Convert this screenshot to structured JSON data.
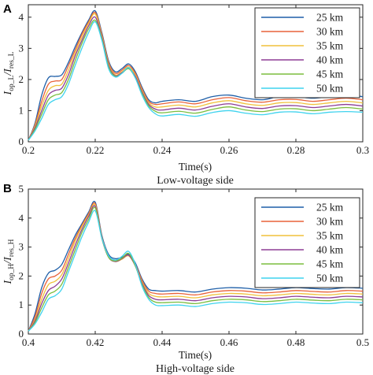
{
  "colors": {
    "25 km": "#1f5fa8",
    "30 km": "#e8623a",
    "35 km": "#f0c13c",
    "40 km": "#8e3d96",
    "45 km": "#7bbd3f",
    "50 km": "#3fd3ee"
  },
  "chart_data": [
    {
      "type": "line",
      "panel": "A",
      "caption": "Low-voltage side",
      "xlabel": "Time(s)",
      "ylabel": {
        "main": "I",
        "sub1": "op_L",
        "mid": "/I",
        "sub2": "res_L"
      },
      "xlim": [
        0.2,
        0.3
      ],
      "ylim": [
        0,
        4.4
      ],
      "xticks": [
        0.2,
        0.22,
        0.24,
        0.26,
        0.28,
        0.3
      ],
      "xtick_labels": [
        "0.2",
        "0.22",
        "0.24",
        "0.26",
        "0.28",
        "0.3"
      ],
      "yticks": [
        0,
        1,
        2,
        3,
        4
      ],
      "ytick_labels": [
        "0",
        "1",
        "2",
        "3",
        "4"
      ],
      "legend_position": "top-right",
      "grid": false,
      "series": [
        {
          "name": "25 km",
          "x": [
            0.2,
            0.202,
            0.204,
            0.206,
            0.208,
            0.21,
            0.212,
            0.214,
            0.216,
            0.218,
            0.22,
            0.222,
            0.224,
            0.226,
            0.228,
            0.23,
            0.232,
            0.234,
            0.236,
            0.238,
            0.24,
            0.245,
            0.25,
            0.255,
            0.26,
            0.265,
            0.27,
            0.275,
            0.28,
            0.285,
            0.29,
            0.295,
            0.3
          ],
          "y": [
            0.05,
            0.6,
            1.5,
            2.05,
            2.1,
            2.15,
            2.55,
            3.05,
            3.5,
            3.9,
            4.2,
            3.5,
            2.6,
            2.25,
            2.35,
            2.5,
            2.25,
            1.75,
            1.35,
            1.25,
            1.3,
            1.35,
            1.3,
            1.45,
            1.5,
            1.4,
            1.35,
            1.45,
            1.45,
            1.4,
            1.45,
            1.5,
            1.45
          ]
        },
        {
          "name": "30 km",
          "x": [
            0.2,
            0.202,
            0.204,
            0.206,
            0.208,
            0.21,
            0.212,
            0.214,
            0.216,
            0.218,
            0.22,
            0.222,
            0.224,
            0.226,
            0.228,
            0.23,
            0.232,
            0.234,
            0.236,
            0.238,
            0.24,
            0.245,
            0.25,
            0.255,
            0.26,
            0.265,
            0.27,
            0.275,
            0.28,
            0.285,
            0.29,
            0.295,
            0.3
          ],
          "y": [
            0.05,
            0.55,
            1.3,
            1.85,
            1.95,
            2.0,
            2.45,
            2.95,
            3.45,
            3.85,
            4.15,
            3.45,
            2.55,
            2.2,
            2.3,
            2.45,
            2.2,
            1.7,
            1.3,
            1.2,
            1.22,
            1.28,
            1.22,
            1.35,
            1.42,
            1.32,
            1.27,
            1.35,
            1.36,
            1.3,
            1.35,
            1.4,
            1.35
          ]
        },
        {
          "name": "35 km",
          "x": [
            0.2,
            0.202,
            0.204,
            0.206,
            0.208,
            0.21,
            0.212,
            0.214,
            0.216,
            0.218,
            0.22,
            0.222,
            0.224,
            0.226,
            0.228,
            0.23,
            0.232,
            0.234,
            0.236,
            0.238,
            0.24,
            0.245,
            0.25,
            0.255,
            0.26,
            0.265,
            0.27,
            0.275,
            0.28,
            0.285,
            0.29,
            0.295,
            0.3
          ],
          "y": [
            0.05,
            0.5,
            1.15,
            1.65,
            1.8,
            1.85,
            2.3,
            2.85,
            3.35,
            3.8,
            4.1,
            3.4,
            2.5,
            2.15,
            2.25,
            2.4,
            2.15,
            1.65,
            1.25,
            1.12,
            1.12,
            1.18,
            1.12,
            1.25,
            1.32,
            1.22,
            1.17,
            1.25,
            1.26,
            1.2,
            1.25,
            1.3,
            1.25
          ]
        },
        {
          "name": "40 km",
          "x": [
            0.2,
            0.202,
            0.204,
            0.206,
            0.208,
            0.21,
            0.212,
            0.214,
            0.216,
            0.218,
            0.22,
            0.222,
            0.224,
            0.226,
            0.228,
            0.23,
            0.232,
            0.234,
            0.236,
            0.238,
            0.24,
            0.245,
            0.25,
            0.255,
            0.26,
            0.265,
            0.27,
            0.275,
            0.28,
            0.285,
            0.29,
            0.295,
            0.3
          ],
          "y": [
            0.05,
            0.45,
            1.0,
            1.5,
            1.65,
            1.72,
            2.15,
            2.75,
            3.25,
            3.72,
            4.0,
            3.35,
            2.45,
            2.12,
            2.22,
            2.35,
            2.1,
            1.6,
            1.2,
            1.05,
            1.02,
            1.08,
            1.02,
            1.14,
            1.22,
            1.12,
            1.07,
            1.15,
            1.16,
            1.1,
            1.15,
            1.2,
            1.15
          ]
        },
        {
          "name": "45 km",
          "x": [
            0.2,
            0.202,
            0.204,
            0.206,
            0.208,
            0.21,
            0.212,
            0.214,
            0.216,
            0.218,
            0.22,
            0.222,
            0.224,
            0.226,
            0.228,
            0.23,
            0.232,
            0.234,
            0.236,
            0.238,
            0.24,
            0.245,
            0.25,
            0.255,
            0.26,
            0.265,
            0.27,
            0.275,
            0.28,
            0.285,
            0.29,
            0.295,
            0.3
          ],
          "y": [
            0.05,
            0.4,
            0.88,
            1.35,
            1.5,
            1.58,
            2.0,
            2.6,
            3.15,
            3.62,
            3.9,
            3.3,
            2.4,
            2.1,
            2.2,
            2.35,
            2.05,
            1.55,
            1.15,
            0.98,
            0.93,
            0.98,
            0.92,
            1.04,
            1.12,
            1.02,
            0.97,
            1.05,
            1.06,
            1.0,
            1.05,
            1.1,
            1.05
          ]
        },
        {
          "name": "50 km",
          "x": [
            0.2,
            0.202,
            0.204,
            0.206,
            0.208,
            0.21,
            0.212,
            0.214,
            0.216,
            0.218,
            0.22,
            0.222,
            0.224,
            0.226,
            0.228,
            0.23,
            0.232,
            0.234,
            0.236,
            0.238,
            0.24,
            0.245,
            0.25,
            0.255,
            0.26,
            0.265,
            0.27,
            0.275,
            0.28,
            0.285,
            0.29,
            0.295,
            0.3
          ],
          "y": [
            0.05,
            0.35,
            0.75,
            1.2,
            1.35,
            1.45,
            1.85,
            2.45,
            3.0,
            3.5,
            3.85,
            3.25,
            2.35,
            2.08,
            2.2,
            2.38,
            2.05,
            1.5,
            1.1,
            0.9,
            0.83,
            0.88,
            0.82,
            0.94,
            1.0,
            0.92,
            0.87,
            0.95,
            0.96,
            0.9,
            0.95,
            0.97,
            0.95
          ]
        }
      ]
    },
    {
      "type": "line",
      "panel": "B",
      "caption": "High-voltage side",
      "xlabel": "Time(s)",
      "ylabel": {
        "main": "I",
        "sub1": "op_H",
        "mid": "/I",
        "sub2": "res_H"
      },
      "xlim": [
        0.4,
        0.5
      ],
      "ylim": [
        0,
        5
      ],
      "xticks": [
        0.4,
        0.42,
        0.44,
        0.46,
        0.48,
        0.5
      ],
      "xtick_labels": [
        "0.4",
        "0.42",
        "0.44",
        "0.46",
        "0.48",
        "0.5"
      ],
      "yticks": [
        0,
        1,
        2,
        3,
        4,
        5
      ],
      "ytick_labels": [
        "0",
        "1",
        "2",
        "3",
        "4",
        "5"
      ],
      "legend_position": "top-right",
      "grid": false,
      "series": [
        {
          "name": "25 km",
          "x": [
            0.4,
            0.402,
            0.404,
            0.406,
            0.408,
            0.41,
            0.412,
            0.414,
            0.416,
            0.418,
            0.42,
            0.422,
            0.424,
            0.426,
            0.428,
            0.43,
            0.432,
            0.434,
            0.436,
            0.438,
            0.44,
            0.445,
            0.45,
            0.455,
            0.46,
            0.465,
            0.47,
            0.475,
            0.48,
            0.485,
            0.49,
            0.495,
            0.5
          ],
          "y": [
            0.1,
            0.7,
            1.6,
            2.1,
            2.2,
            2.4,
            2.9,
            3.4,
            3.8,
            4.2,
            4.55,
            3.4,
            2.75,
            2.6,
            2.65,
            2.75,
            2.45,
            1.9,
            1.55,
            1.5,
            1.48,
            1.5,
            1.45,
            1.55,
            1.6,
            1.58,
            1.52,
            1.55,
            1.6,
            1.57,
            1.55,
            1.6,
            1.58
          ]
        },
        {
          "name": "30 km",
          "x": [
            0.4,
            0.402,
            0.404,
            0.406,
            0.408,
            0.41,
            0.412,
            0.414,
            0.416,
            0.418,
            0.42,
            0.422,
            0.424,
            0.426,
            0.428,
            0.43,
            0.432,
            0.434,
            0.436,
            0.438,
            0.44,
            0.445,
            0.45,
            0.455,
            0.46,
            0.465,
            0.47,
            0.475,
            0.48,
            0.485,
            0.49,
            0.495,
            0.5
          ],
          "y": [
            0.1,
            0.6,
            1.4,
            1.9,
            2.0,
            2.2,
            2.75,
            3.3,
            3.75,
            4.15,
            4.5,
            3.35,
            2.7,
            2.55,
            2.6,
            2.7,
            2.4,
            1.85,
            1.48,
            1.4,
            1.38,
            1.4,
            1.35,
            1.45,
            1.5,
            1.48,
            1.42,
            1.45,
            1.5,
            1.47,
            1.45,
            1.5,
            1.48
          ]
        },
        {
          "name": "35 km",
          "x": [
            0.4,
            0.402,
            0.404,
            0.406,
            0.408,
            0.41,
            0.412,
            0.414,
            0.416,
            0.418,
            0.42,
            0.422,
            0.424,
            0.426,
            0.428,
            0.43,
            0.432,
            0.434,
            0.436,
            0.438,
            0.44,
            0.445,
            0.45,
            0.455,
            0.46,
            0.465,
            0.47,
            0.475,
            0.48,
            0.485,
            0.49,
            0.495,
            0.5
          ],
          "y": [
            0.1,
            0.5,
            1.2,
            1.7,
            1.82,
            2.05,
            2.6,
            3.2,
            3.7,
            4.1,
            4.45,
            3.3,
            2.65,
            2.5,
            2.58,
            2.7,
            2.35,
            1.8,
            1.4,
            1.3,
            1.28,
            1.3,
            1.25,
            1.35,
            1.4,
            1.38,
            1.32,
            1.35,
            1.4,
            1.37,
            1.35,
            1.4,
            1.38
          ]
        },
        {
          "name": "40 km",
          "x": [
            0.4,
            0.402,
            0.404,
            0.406,
            0.408,
            0.41,
            0.412,
            0.414,
            0.416,
            0.418,
            0.42,
            0.422,
            0.424,
            0.426,
            0.428,
            0.43,
            0.432,
            0.434,
            0.436,
            0.438,
            0.44,
            0.445,
            0.45,
            0.455,
            0.46,
            0.465,
            0.47,
            0.475,
            0.48,
            0.485,
            0.49,
            0.495,
            0.5
          ],
          "y": [
            0.1,
            0.45,
            1.05,
            1.5,
            1.65,
            1.9,
            2.45,
            3.05,
            3.6,
            4.05,
            4.4,
            3.3,
            2.65,
            2.5,
            2.6,
            2.72,
            2.35,
            1.75,
            1.33,
            1.2,
            1.18,
            1.2,
            1.15,
            1.25,
            1.3,
            1.28,
            1.22,
            1.25,
            1.3,
            1.27,
            1.25,
            1.3,
            1.28
          ]
        },
        {
          "name": "45 km",
          "x": [
            0.4,
            0.402,
            0.404,
            0.406,
            0.408,
            0.41,
            0.412,
            0.414,
            0.416,
            0.418,
            0.42,
            0.422,
            0.424,
            0.426,
            0.428,
            0.43,
            0.432,
            0.434,
            0.436,
            0.438,
            0.44,
            0.445,
            0.45,
            0.455,
            0.46,
            0.465,
            0.47,
            0.475,
            0.48,
            0.485,
            0.49,
            0.495,
            0.5
          ],
          "y": [
            0.1,
            0.4,
            0.9,
            1.35,
            1.48,
            1.72,
            2.3,
            2.9,
            3.5,
            3.95,
            4.35,
            3.3,
            2.65,
            2.52,
            2.62,
            2.78,
            2.35,
            1.7,
            1.26,
            1.1,
            1.08,
            1.1,
            1.05,
            1.15,
            1.2,
            1.18,
            1.12,
            1.15,
            1.2,
            1.17,
            1.15,
            1.2,
            1.18
          ]
        },
        {
          "name": "50 km",
          "x": [
            0.4,
            0.402,
            0.404,
            0.406,
            0.408,
            0.41,
            0.412,
            0.414,
            0.416,
            0.418,
            0.42,
            0.422,
            0.424,
            0.426,
            0.428,
            0.43,
            0.432,
            0.434,
            0.436,
            0.438,
            0.44,
            0.445,
            0.45,
            0.455,
            0.46,
            0.465,
            0.47,
            0.475,
            0.48,
            0.485,
            0.49,
            0.495,
            0.5
          ],
          "y": [
            0.1,
            0.35,
            0.75,
            1.2,
            1.32,
            1.55,
            2.15,
            2.75,
            3.35,
            3.85,
            4.25,
            3.3,
            2.7,
            2.55,
            2.68,
            2.85,
            2.4,
            1.65,
            1.2,
            1.0,
            0.98,
            1.0,
            0.95,
            1.05,
            1.1,
            1.08,
            1.02,
            1.05,
            1.1,
            1.07,
            1.05,
            1.1,
            1.08
          ]
        }
      ]
    }
  ]
}
